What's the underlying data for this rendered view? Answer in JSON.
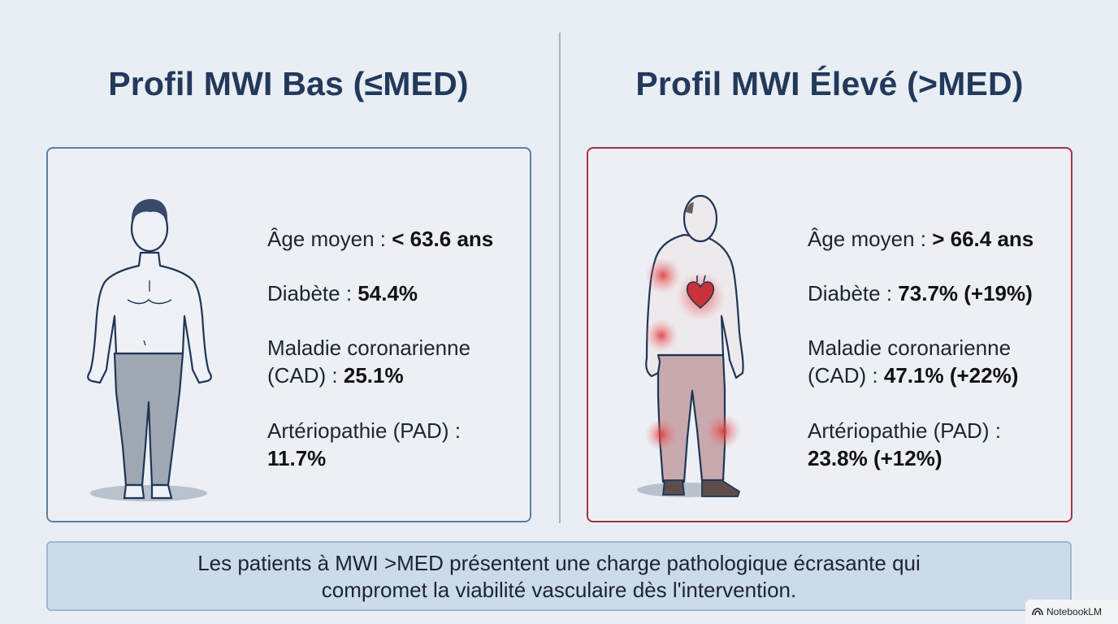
{
  "left": {
    "title": "Profil MWI Bas (≤MED)",
    "figure_icon": "healthy-person-icon",
    "stats": {
      "age_label": "Âge moyen : ",
      "age_value": "< 63.6 ans",
      "diabetes_label": "Diabète : ",
      "diabetes_value": "54.4%",
      "cad_line1": "Maladie coronarienne",
      "cad_label": "(CAD) : ",
      "cad_value": "25.1%",
      "pad_label": "Artériopathie (PAD) :",
      "pad_value": "11.7%"
    }
  },
  "right": {
    "title": "Profil MWI Élevé (>MED)",
    "figure_icon": "sick-elderly-person-icon",
    "stats": {
      "age_label": "Âge moyen : ",
      "age_value": "> 66.4 ans",
      "diabetes_label": "Diabète : ",
      "diabetes_value": "73.7% (+19%)",
      "cad_line1": "Maladie coronarienne",
      "cad_label": "(CAD) : ",
      "cad_value": "47.1% (+22%)",
      "pad_label": "Artériopathie (PAD) :",
      "pad_value": "23.8% (+12%)"
    }
  },
  "footer": {
    "line1": "Les patients à MWI >MED présentent une charge pathologique écrasante qui",
    "line2": "compromet la viabilité vasculaire dès l'intervention."
  },
  "watermark": {
    "text": "NotebookLM",
    "icon": "notebooklm-logo-icon"
  },
  "colors": {
    "background": "#e9eef4",
    "title": "#23395b",
    "left_border": "#5d7ea3",
    "right_border": "#a33245",
    "footer_bg": "#ccdbea",
    "highlight": "#e03a3a"
  }
}
